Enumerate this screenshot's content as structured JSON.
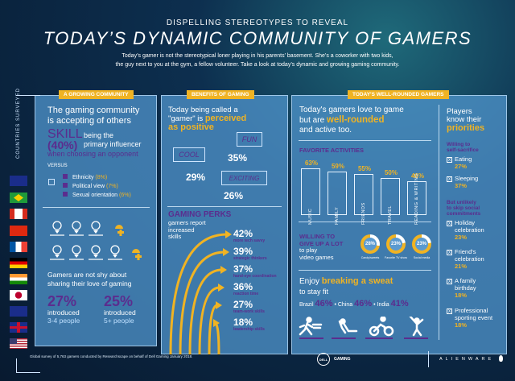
{
  "header": {
    "kicker": "DISPELLING STEREOTYPES TO REVEAL",
    "title": "TODAY’S DYNAMIC COMMUNITY OF GAMERS",
    "intro_1": "Today’s gamer is not the stereotypical loner playing in his parents’ basement. She’s a coworker with two kids,",
    "intro_2": "the guy next to you at the gym, a fellow volunteer. Take a look at today’s dynamic and growing gaming community."
  },
  "countries": {
    "label": "COUNTRIES SURVEYED",
    "flags": [
      "australia",
      "brazil",
      "canada",
      "china",
      "france",
      "germany",
      "india",
      "japan",
      "new-zealand",
      "united-kingdom",
      "united-states"
    ]
  },
  "growing": {
    "tab": "A GROWING COMMUNITY",
    "heading_1": "The gaming community",
    "heading_2": "is accepting of others",
    "skill": "SKILL",
    "skill_pct": "(40%)",
    "skill_text_1": "being the",
    "skill_text_2": "primary influencer",
    "skill_text_3": "when choosing an opponent",
    "versus": "VERSUS",
    "items": [
      {
        "label": "Ethnicity",
        "pct": "(8%)"
      },
      {
        "label": "Political view",
        "pct": "(7%)"
      },
      {
        "label": "Sexual orientation",
        "pct": "(6%)"
      }
    ],
    "share_1": "Gamers are not shy about",
    "share_2": "sharing their love of gaming",
    "stats": [
      {
        "pct": "27%",
        "label": "introduced",
        "sub": "3-4 people"
      },
      {
        "pct": "25%",
        "label": "introduced",
        "sub": "5+ people"
      }
    ]
  },
  "benefits": {
    "tab": "BENEFITS OF GAMING",
    "heading_1": "Today being called a",
    "heading_2": "\"gamer\" is",
    "hl_1": "perceived",
    "hl_2": "as positive",
    "bubbles": [
      {
        "word": "COOL",
        "pct": "29%"
      },
      {
        "word": "FUN",
        "pct": "35%"
      },
      {
        "word": "EXCITING",
        "pct": "26%"
      }
    ],
    "perks_title": "GAMING PERKS",
    "perks_sub_1": "gamers report",
    "perks_sub_2": "increased",
    "perks_sub_3": "skills",
    "perks": [
      {
        "pct": "42%",
        "label": "more tech savvy",
        "value": 42
      },
      {
        "pct": "39%",
        "label": "strategic thinkers",
        "value": 39
      },
      {
        "pct": "37%",
        "label": "hand-eye coordination",
        "value": 37
      },
      {
        "pct": "36%",
        "label": "reaction time",
        "value": 36
      },
      {
        "pct": "27%",
        "label": "team-work skills",
        "value": 27
      },
      {
        "pct": "18%",
        "label": "leadership skills",
        "value": 18
      }
    ]
  },
  "rounded": {
    "tab": "TODAY'S WELL-ROUNDED GAMERS",
    "heading_1": "Today's gamers love to game",
    "heading_2": "but are",
    "hl": "well-rounded",
    "heading_3": "and active too.",
    "activities_title": "FAVORITE ACTIVITIES",
    "activities": [
      {
        "label": "MUSIC",
        "pct": "63%",
        "value": 63
      },
      {
        "label": "FAMILY",
        "pct": "59%",
        "value": 59
      },
      {
        "label": "FRIENDS",
        "pct": "55%",
        "value": 55
      },
      {
        "label": "TRAVEL",
        "pct": "50%",
        "value": 50
      },
      {
        "label": "READING & WRITING",
        "pct": "46%",
        "value": 46
      }
    ],
    "give_1": "WILLING TO",
    "give_2": "GIVE UP A LOT",
    "give_3": "to play",
    "give_4": "video games",
    "donuts": [
      {
        "pct": "28%",
        "label": "Candy/sweets",
        "value": 28
      },
      {
        "pct": "23%",
        "label": "Favorite TV show",
        "value": 23
      },
      {
        "pct": "23%",
        "label": "Social media",
        "value": 23
      }
    ],
    "sweat_1": "Enjoy",
    "sweat_hl": "breaking a sweat",
    "sweat_2": "to stay fit",
    "countries": [
      {
        "name": "Brazil",
        "pct": "46%"
      },
      {
        "name": "China",
        "pct": "46%"
      },
      {
        "name": "India",
        "pct": "41%"
      }
    ],
    "sep": "•"
  },
  "priorities": {
    "h1": "Players",
    "h2": "know their",
    "hl": "priorities",
    "sac_title_1": "Willing to",
    "sac_title_2": "self-sacrifice",
    "sacrifice": [
      {
        "label": "Eating",
        "pct": "27%"
      },
      {
        "label": "Sleeping",
        "pct": "37%"
      }
    ],
    "skip_1": "But unlikely",
    "skip_2": "to skip social",
    "skip_3": "commitments",
    "social": [
      {
        "label_1": "Holiday",
        "label_2": "celebration",
        "pct": "23%"
      },
      {
        "label_1": "Friend's",
        "label_2": "celebration",
        "pct": "21%"
      },
      {
        "label_1": "A family",
        "label_2": "birthday",
        "pct": "18%"
      },
      {
        "label_1": "Professional",
        "label_2": "sporting event",
        "pct": "18%"
      }
    ],
    "x": "X"
  },
  "footer": {
    "note": "Global survey of 5,763 gamers conducted by Researchscape on behalf of Dell Gaming January 2018.",
    "dell": "DELL",
    "gaming": "GAMING",
    "alienware": "ALIENWARE"
  },
  "colors": {
    "accent": "#f0b323",
    "purple": "#5b2d8e",
    "panel": "#4f8fc8"
  }
}
